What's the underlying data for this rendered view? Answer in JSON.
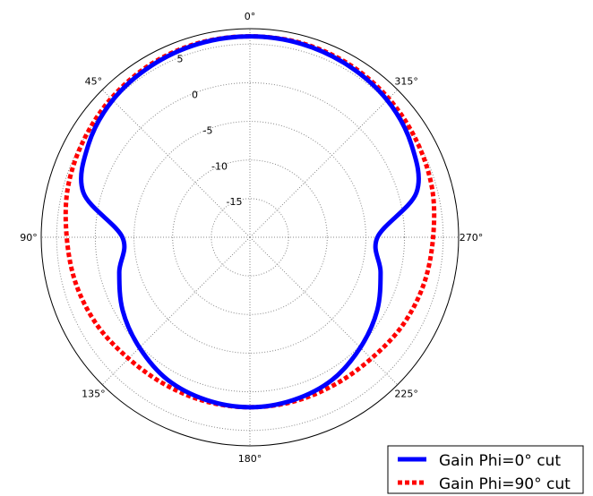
{
  "chart_data": {
    "type": "polar-line",
    "angle_zero": "top",
    "angle_direction": "counterclockwise",
    "theta_ticks": [
      "0°",
      "45°",
      "90°",
      "135°",
      "180°",
      "225°",
      "270°",
      "315°"
    ],
    "theta_tick_values": [
      0,
      45,
      90,
      135,
      180,
      225,
      270,
      315
    ],
    "r_ticks": [
      "-15",
      "-10",
      "-5",
      "0",
      "5"
    ],
    "r_tick_values": [
      -15,
      -10,
      -5,
      0,
      5
    ],
    "rlim": [
      -20,
      7
    ],
    "grid": true,
    "legend_position": "bottom-right",
    "series": [
      {
        "name": "Gain Phi=0° cut",
        "color": "#0000ff",
        "style": "solid",
        "theta": [
          0,
          15,
          30,
          45,
          60,
          75,
          90,
          105,
          120,
          135,
          150,
          165,
          180,
          195,
          210,
          225,
          240,
          255,
          270,
          285,
          300,
          315,
          330,
          345
        ],
        "r": [
          6.0,
          5.9,
          5.6,
          5.1,
          4.1,
          2.3,
          -3.5,
          -2.5,
          -1.0,
          0.2,
          1.3,
          1.8,
          2.0,
          1.8,
          1.3,
          0.2,
          -1.0,
          -2.5,
          -3.5,
          2.3,
          4.1,
          5.1,
          5.6,
          5.9
        ]
      },
      {
        "name": "Gain Phi=90° cut",
        "color": "#ff0000",
        "style": "dotted",
        "theta": [
          0,
          15,
          30,
          45,
          60,
          75,
          90,
          105,
          120,
          135,
          150,
          165,
          180,
          195,
          210,
          225,
          240,
          255,
          270,
          285,
          300,
          315,
          330,
          345
        ],
        "r": [
          6.0,
          6.0,
          5.8,
          5.4,
          4.9,
          4.4,
          3.7,
          3.3,
          2.8,
          2.2,
          2.0,
          2.0,
          2.0,
          2.0,
          2.0,
          2.2,
          2.8,
          3.3,
          3.7,
          4.4,
          4.9,
          5.4,
          5.8,
          6.0
        ]
      }
    ]
  }
}
